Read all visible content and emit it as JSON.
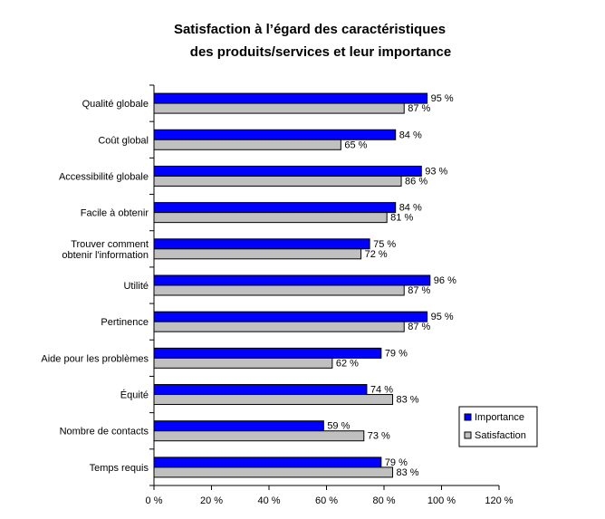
{
  "chart_data": {
    "type": "bar",
    "orientation": "horizontal",
    "title": [
      "Satisfaction à l’égard des caractéristiques",
      "des produits/services et leur importance"
    ],
    "categories": [
      "Qualité globale",
      "Coût global",
      "Accessibilité globale",
      "Facile à obtenir",
      "Trouver comment obtenir l'information",
      "Utilité",
      "Pertinence",
      "Aide pour les problèmes",
      "Équité",
      "Nombre de contacts",
      "Temps requis"
    ],
    "category_lines": [
      [
        "Qualité globale"
      ],
      [
        "Coût global"
      ],
      [
        "Accessibilité globale"
      ],
      [
        "Facile à obtenir"
      ],
      [
        "Trouver comment",
        "obtenir l'information"
      ],
      [
        "Utilité"
      ],
      [
        "Pertinence"
      ],
      [
        "Aide pour les problèmes"
      ],
      [
        "Équité"
      ],
      [
        "Nombre de contacts"
      ],
      [
        "Temps requis"
      ]
    ],
    "series": [
      {
        "name": "Importance",
        "color": "#0000ff",
        "values": [
          95,
          84,
          93,
          84,
          75,
          96,
          95,
          79,
          74,
          59,
          79
        ]
      },
      {
        "name": "Satisfaction",
        "color": "#c0c0c0",
        "values": [
          87,
          65,
          86,
          81,
          72,
          87,
          87,
          62,
          83,
          73,
          83
        ]
      }
    ],
    "value_suffix": " %",
    "xlim": [
      0,
      120
    ],
    "xticks": [
      "0 %",
      "20 %",
      "40 %",
      "60 %",
      "80 %",
      "100 %",
      "120 %"
    ],
    "grid": false,
    "legend_position": "right"
  }
}
